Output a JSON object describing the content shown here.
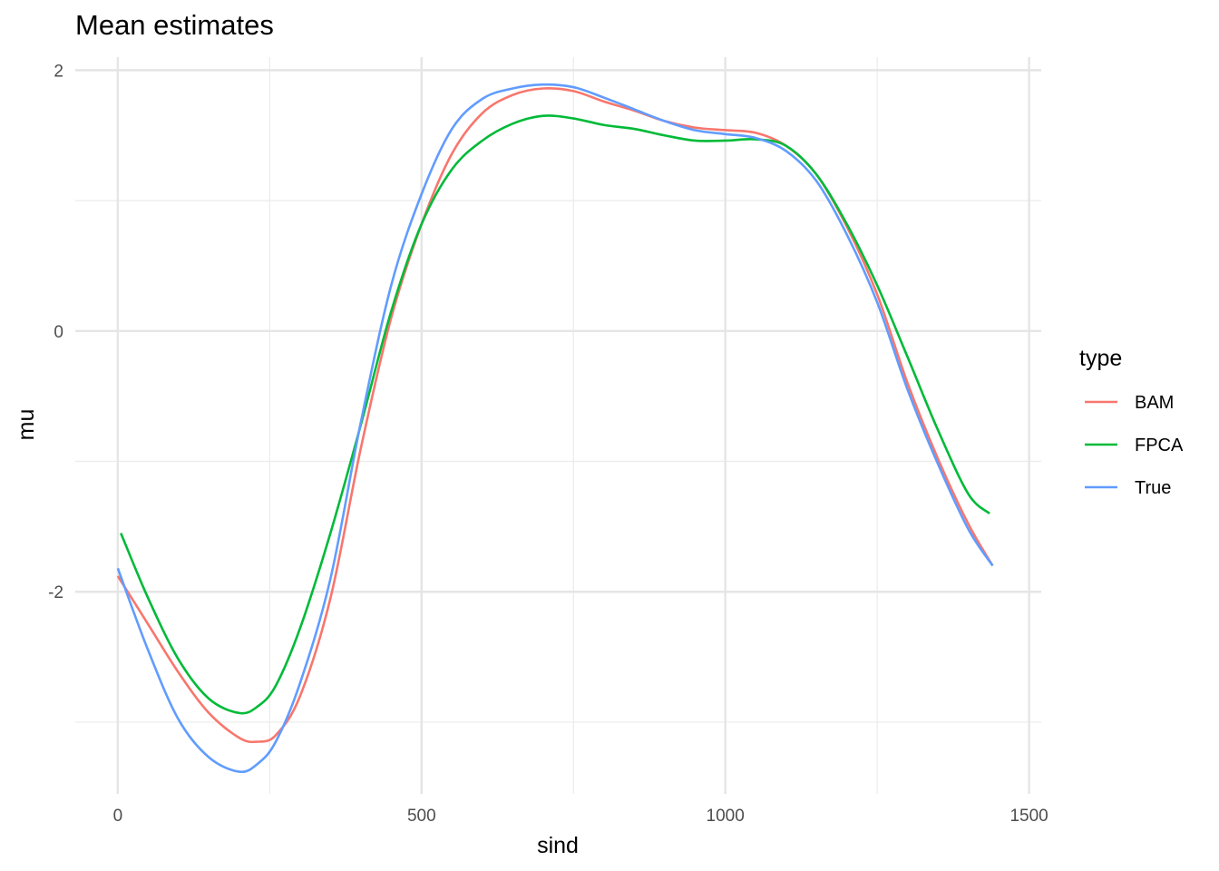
{
  "chart_data": {
    "type": "line",
    "title": "Mean estimates",
    "xlabel": "sind",
    "ylabel": "mu",
    "xlim": [
      -70,
      1520
    ],
    "ylim": [
      -3.55,
      2.1
    ],
    "x_ticks": [
      0,
      500,
      1000,
      1500
    ],
    "x_tick_labels": [
      "0",
      "500",
      "1000",
      "1500"
    ],
    "x_minor": [
      250,
      750,
      1250
    ],
    "y_ticks": [
      -2,
      0,
      2
    ],
    "y_tick_labels": [
      "-2",
      "0",
      "2"
    ],
    "y_minor": [
      -3,
      -1,
      1
    ],
    "grid": true,
    "legend": {
      "title": "type",
      "position": "right"
    },
    "series": [
      {
        "name": "BAM",
        "color": "#F8766D",
        "x": [
          0,
          50,
          100,
          150,
          200,
          230,
          260,
          300,
          350,
          400,
          450,
          500,
          550,
          600,
          650,
          700,
          750,
          800,
          850,
          900,
          950,
          1000,
          1050,
          1100,
          1150,
          1200,
          1250,
          1300,
          1350,
          1400,
          1440
        ],
        "y": [
          -1.88,
          -2.25,
          -2.62,
          -2.93,
          -3.12,
          -3.15,
          -3.1,
          -2.8,
          -2.05,
          -0.9,
          0.1,
          0.82,
          1.36,
          1.67,
          1.81,
          1.86,
          1.84,
          1.76,
          1.69,
          1.61,
          1.56,
          1.54,
          1.52,
          1.42,
          1.2,
          0.8,
          0.28,
          -0.4,
          -0.98,
          -1.48,
          -1.8
        ]
      },
      {
        "name": "FPCA",
        "color": "#00BA38",
        "x": [
          5,
          50,
          100,
          150,
          200,
          230,
          260,
          300,
          350,
          400,
          450,
          500,
          550,
          600,
          650,
          700,
          750,
          800,
          850,
          900,
          950,
          1000,
          1050,
          1100,
          1150,
          1200,
          1250,
          1300,
          1350,
          1400,
          1435
        ],
        "y": [
          -1.55,
          -2.05,
          -2.52,
          -2.82,
          -2.93,
          -2.88,
          -2.72,
          -2.28,
          -1.55,
          -0.72,
          0.15,
          0.82,
          1.24,
          1.46,
          1.59,
          1.65,
          1.63,
          1.58,
          1.55,
          1.5,
          1.46,
          1.46,
          1.47,
          1.42,
          1.2,
          0.82,
          0.35,
          -0.2,
          -0.76,
          -1.25,
          -1.4
        ]
      },
      {
        "name": "True",
        "color": "#619CFF",
        "x": [
          0,
          50,
          100,
          150,
          200,
          230,
          260,
          300,
          350,
          400,
          450,
          500,
          550,
          600,
          650,
          700,
          750,
          800,
          850,
          900,
          950,
          1000,
          1050,
          1100,
          1150,
          1200,
          1250,
          1300,
          1350,
          1400,
          1440
        ],
        "y": [
          -1.82,
          -2.45,
          -2.98,
          -3.27,
          -3.38,
          -3.32,
          -3.15,
          -2.7,
          -1.9,
          -0.7,
          0.35,
          1.05,
          1.55,
          1.78,
          1.86,
          1.89,
          1.87,
          1.79,
          1.7,
          1.61,
          1.54,
          1.51,
          1.48,
          1.38,
          1.15,
          0.74,
          0.22,
          -0.45,
          -1.02,
          -1.52,
          -1.8
        ]
      }
    ]
  }
}
